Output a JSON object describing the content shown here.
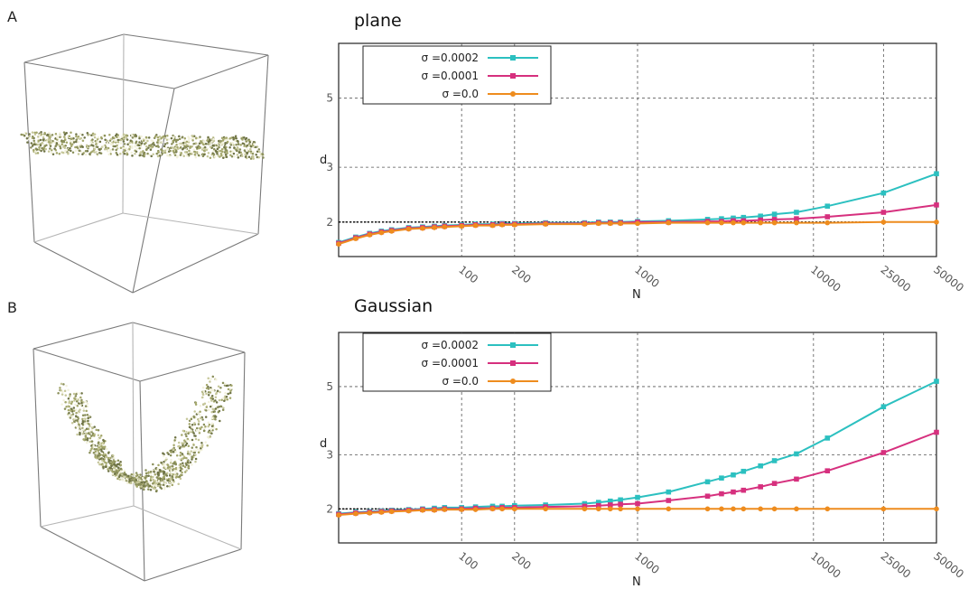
{
  "panels": [
    {
      "letter": "A",
      "shape": "plane"
    },
    {
      "letter": "B",
      "shape": "curved-sheet"
    }
  ],
  "colors": {
    "s2": "#2cc0c0",
    "s1": "#d6307e",
    "s0": "#ee8c1e",
    "reference": "#000000",
    "points": "#8a8f5a"
  },
  "chart_data": [
    {
      "type": "line",
      "title": "plane",
      "xlabel": "N",
      "ylabel": "d",
      "xscale": "log",
      "yscale": "log",
      "xlim": [
        20,
        50000
      ],
      "ylim": [
        1.55,
        7.5
      ],
      "xticks": [
        "100",
        "200",
        "1000",
        "10000",
        "25000",
        "50000"
      ],
      "yticks": [
        "2",
        "3",
        "5"
      ],
      "grid": true,
      "legend": "top-left",
      "reference_line": 2.0,
      "series": [
        {
          "name": "σ =0.0002",
          "color": "#2cc0c0",
          "marker": "square",
          "x": [
            20,
            25,
            30,
            35,
            40,
            50,
            60,
            70,
            80,
            100,
            120,
            150,
            170,
            200,
            300,
            500,
            600,
            700,
            800,
            1000,
            1500,
            2500,
            3000,
            3500,
            4000,
            5000,
            6000,
            8000,
            12000,
            25000,
            50000
          ],
          "y": [
            1.72,
            1.79,
            1.84,
            1.87,
            1.89,
            1.92,
            1.93,
            1.94,
            1.95,
            1.96,
            1.97,
            1.97,
            1.98,
            1.98,
            1.99,
            1.99,
            2.0,
            2.0,
            2.0,
            2.01,
            2.02,
            2.04,
            2.05,
            2.06,
            2.07,
            2.09,
            2.12,
            2.15,
            2.25,
            2.48,
            2.86
          ]
        },
        {
          "name": "σ =0.0001",
          "color": "#d6307e",
          "marker": "square",
          "x": [
            20,
            25,
            30,
            35,
            40,
            50,
            60,
            70,
            80,
            100,
            120,
            150,
            170,
            200,
            300,
            500,
            600,
            700,
            800,
            1000,
            1500,
            2500,
            3000,
            3500,
            4000,
            5000,
            6000,
            8000,
            12000,
            25000,
            50000
          ],
          "y": [
            1.71,
            1.78,
            1.83,
            1.86,
            1.88,
            1.91,
            1.92,
            1.93,
            1.94,
            1.95,
            1.96,
            1.96,
            1.97,
            1.97,
            1.98,
            1.98,
            1.99,
            1.99,
            1.99,
            2.0,
            2.0,
            2.01,
            2.01,
            2.02,
            2.02,
            2.03,
            2.04,
            2.05,
            2.08,
            2.15,
            2.27
          ]
        },
        {
          "name": "σ =0.0",
          "color": "#ee8c1e",
          "marker": "circle",
          "x": [
            20,
            25,
            30,
            35,
            40,
            50,
            60,
            70,
            80,
            100,
            120,
            150,
            170,
            200,
            300,
            500,
            600,
            700,
            800,
            1000,
            1500,
            2500,
            3000,
            3500,
            4000,
            5000,
            6000,
            8000,
            12000,
            25000,
            50000
          ],
          "y": [
            1.7,
            1.77,
            1.82,
            1.85,
            1.87,
            1.9,
            1.91,
            1.92,
            1.93,
            1.94,
            1.95,
            1.95,
            1.96,
            1.96,
            1.97,
            1.97,
            1.98,
            1.98,
            1.98,
            1.98,
            1.99,
            1.99,
            1.99,
            1.99,
            1.99,
            1.99,
            1.99,
            1.99,
            1.99,
            2.0,
            2.0
          ]
        }
      ]
    },
    {
      "type": "line",
      "title": "Gaussian",
      "xlabel": "N",
      "ylabel": "d",
      "xscale": "log",
      "yscale": "log",
      "xlim": [
        20,
        50000
      ],
      "ylim": [
        1.55,
        7.5
      ],
      "xticks": [
        "100",
        "200",
        "1000",
        "10000",
        "25000",
        "50000"
      ],
      "yticks": [
        "2",
        "3",
        "5"
      ],
      "grid": true,
      "legend": "top-left",
      "reference_line": 2.0,
      "series": [
        {
          "name": "σ =0.0002",
          "color": "#2cc0c0",
          "marker": "square",
          "x": [
            20,
            25,
            30,
            35,
            40,
            50,
            60,
            70,
            80,
            100,
            120,
            150,
            170,
            200,
            300,
            500,
            600,
            700,
            800,
            1000,
            1500,
            2500,
            3000,
            3500,
            4000,
            5000,
            6000,
            8000,
            12000,
            25000,
            50000
          ],
          "y": [
            1.93,
            1.95,
            1.96,
            1.97,
            1.98,
            1.99,
            2.0,
            2.01,
            2.02,
            2.02,
            2.03,
            2.04,
            2.04,
            2.05,
            2.06,
            2.08,
            2.1,
            2.12,
            2.14,
            2.18,
            2.27,
            2.45,
            2.52,
            2.58,
            2.65,
            2.76,
            2.87,
            3.02,
            3.4,
            4.3,
            5.2
          ]
        },
        {
          "name": "σ =0.0001",
          "color": "#d6307e",
          "marker": "square",
          "x": [
            20,
            25,
            30,
            35,
            40,
            50,
            60,
            70,
            80,
            100,
            120,
            150,
            170,
            200,
            300,
            500,
            600,
            700,
            800,
            1000,
            1500,
            2500,
            3000,
            3500,
            4000,
            5000,
            6000,
            8000,
            12000,
            25000,
            50000
          ],
          "y": [
            1.92,
            1.94,
            1.95,
            1.96,
            1.97,
            1.98,
            1.99,
            1.99,
            2.0,
            2.0,
            2.01,
            2.01,
            2.02,
            2.02,
            2.03,
            2.04,
            2.05,
            2.06,
            2.07,
            2.08,
            2.13,
            2.2,
            2.24,
            2.27,
            2.3,
            2.36,
            2.42,
            2.5,
            2.66,
            3.05,
            3.55
          ]
        },
        {
          "name": "σ =0.0",
          "color": "#ee8c1e",
          "marker": "circle",
          "x": [
            20,
            25,
            30,
            35,
            40,
            50,
            60,
            70,
            80,
            100,
            120,
            150,
            170,
            200,
            300,
            500,
            600,
            700,
            800,
            1000,
            1500,
            2500,
            3000,
            3500,
            4000,
            5000,
            6000,
            8000,
            12000,
            25000,
            50000
          ],
          "y": [
            1.91,
            1.93,
            1.94,
            1.95,
            1.96,
            1.97,
            1.98,
            1.98,
            1.99,
            1.99,
            1.99,
            2.0,
            2.0,
            2.0,
            2.0,
            2.0,
            2.0,
            2.0,
            2.0,
            2.0,
            2.0,
            2.0,
            2.0,
            2.0,
            2.0,
            2.0,
            2.0,
            2.0,
            2.0,
            2.0,
            2.0
          ]
        }
      ]
    }
  ]
}
